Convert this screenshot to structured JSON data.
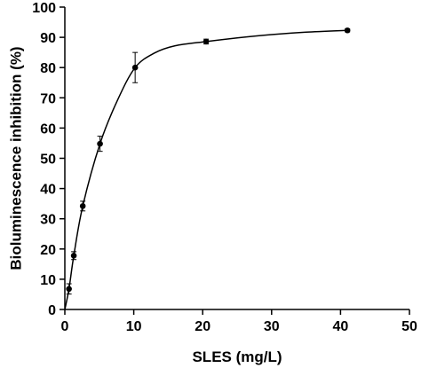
{
  "chart_data": {
    "type": "scatter",
    "title": "",
    "xlabel": "SLES (mg/L)",
    "ylabel": "Bioluminescence inhibition (%)",
    "xlim": [
      0,
      50
    ],
    "ylim": [
      0,
      100
    ],
    "x_ticks": [
      "0",
      "10",
      "20",
      "30",
      "40",
      "50"
    ],
    "y_ticks": [
      "0",
      "10",
      "20",
      "30",
      "40",
      "50",
      "60",
      "70",
      "80",
      "90",
      "100"
    ],
    "grid": false,
    "legend": "none",
    "series": [
      {
        "x": [
          0.6,
          1.3,
          2.6,
          5.1,
          10.2,
          20.5,
          41.0
        ],
        "y": [
          6.8,
          17.8,
          34.2,
          54.8,
          80.0,
          88.6,
          92.3
        ],
        "error": [
          1.7,
          1.3,
          1.6,
          2.5,
          5.0,
          0.8,
          0.5
        ]
      }
    ],
    "fit_curve": {
      "type": "smooth",
      "x": [
        0,
        0.6,
        1.3,
        2.6,
        5.1,
        7.6,
        10.2,
        13.0,
        16.0,
        20.5,
        25.0,
        30.0,
        35.0,
        41.0
      ],
      "y": [
        0,
        6.8,
        17.8,
        34.2,
        54.8,
        69.0,
        80.0,
        84.8,
        87.2,
        88.6,
        89.8,
        90.9,
        91.7,
        92.3
      ]
    },
    "colors": {
      "marker": "#000000",
      "line": "#000000",
      "axis": "#000000"
    }
  }
}
